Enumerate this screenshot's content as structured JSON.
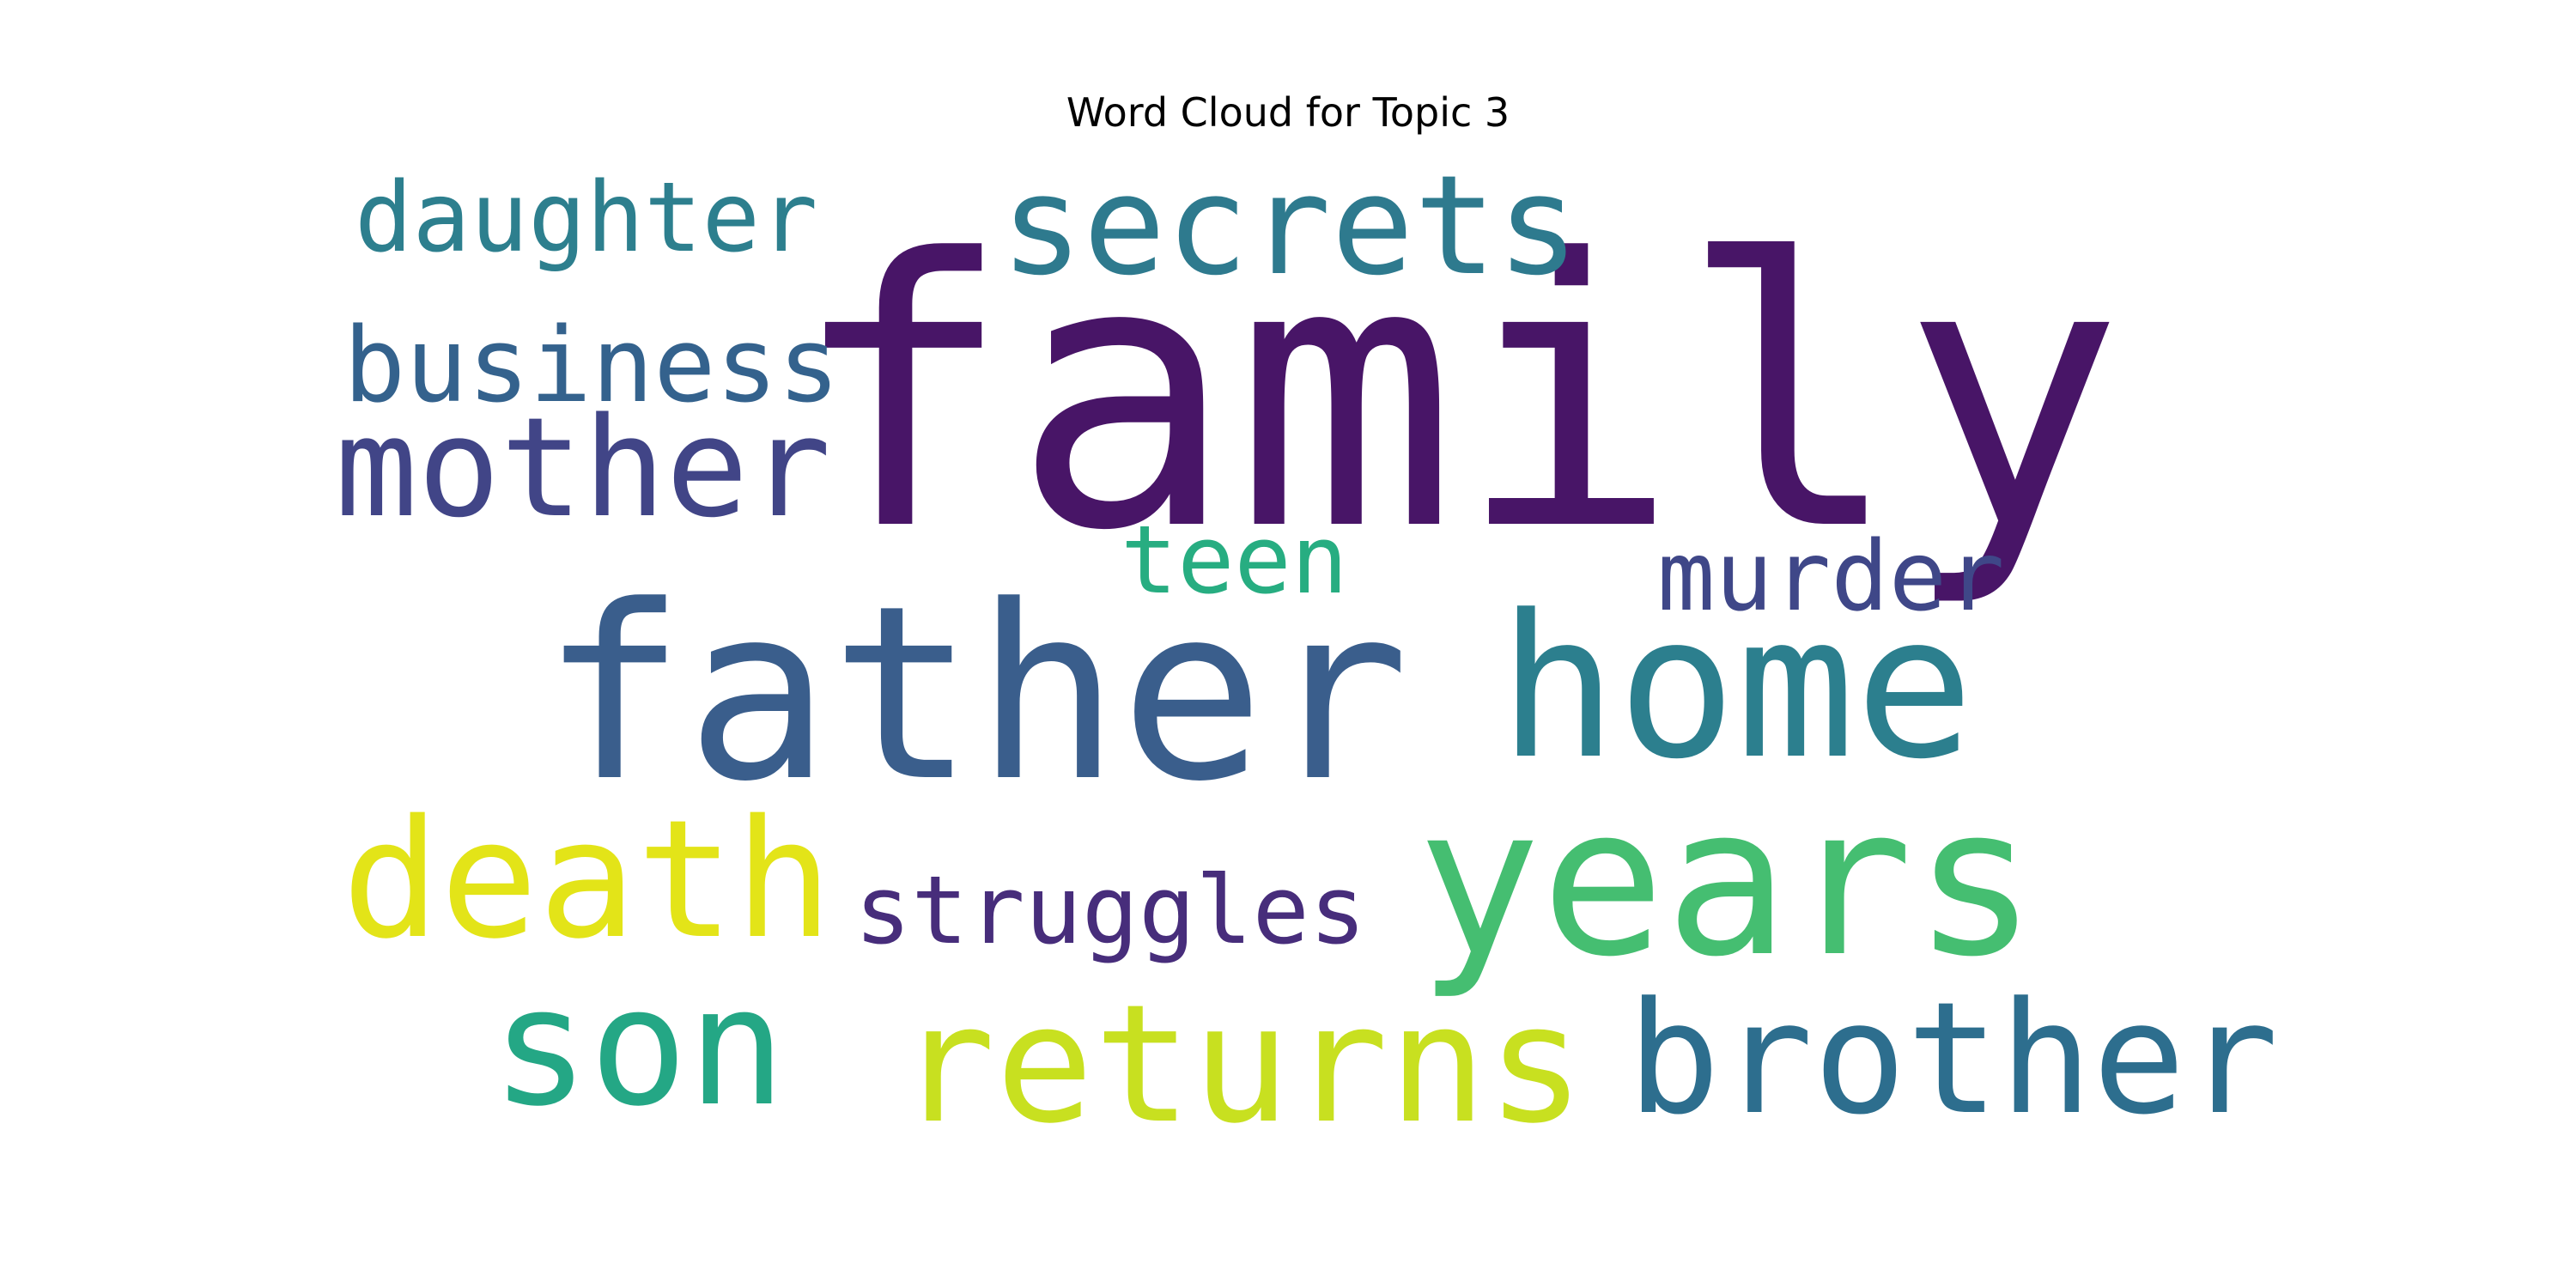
{
  "chart_data": {
    "type": "wordcloud",
    "title": "Word Cloud for Topic 3",
    "words": [
      {
        "text": "family",
        "color": "#481567"
      },
      {
        "text": "father",
        "color": "#3a5e8c"
      },
      {
        "text": "home",
        "color": "#2c7f8e"
      },
      {
        "text": "years",
        "color": "#45be71"
      },
      {
        "text": "secrets",
        "color": "#2e7a8e"
      },
      {
        "text": "returns",
        "color": "#c8e020"
      },
      {
        "text": "brother",
        "color": "#2d6e8e"
      },
      {
        "text": "death",
        "color": "#e3e418"
      },
      {
        "text": "son",
        "color": "#24a785"
      },
      {
        "text": "mother",
        "color": "#414587"
      },
      {
        "text": "business",
        "color": "#34628d"
      },
      {
        "text": "daughter",
        "color": "#2d7f8e"
      },
      {
        "text": "struggles",
        "color": "#472d7b"
      },
      {
        "text": "murder",
        "color": "#3f4788"
      },
      {
        "text": "teen",
        "color": "#27ad81"
      }
    ]
  }
}
